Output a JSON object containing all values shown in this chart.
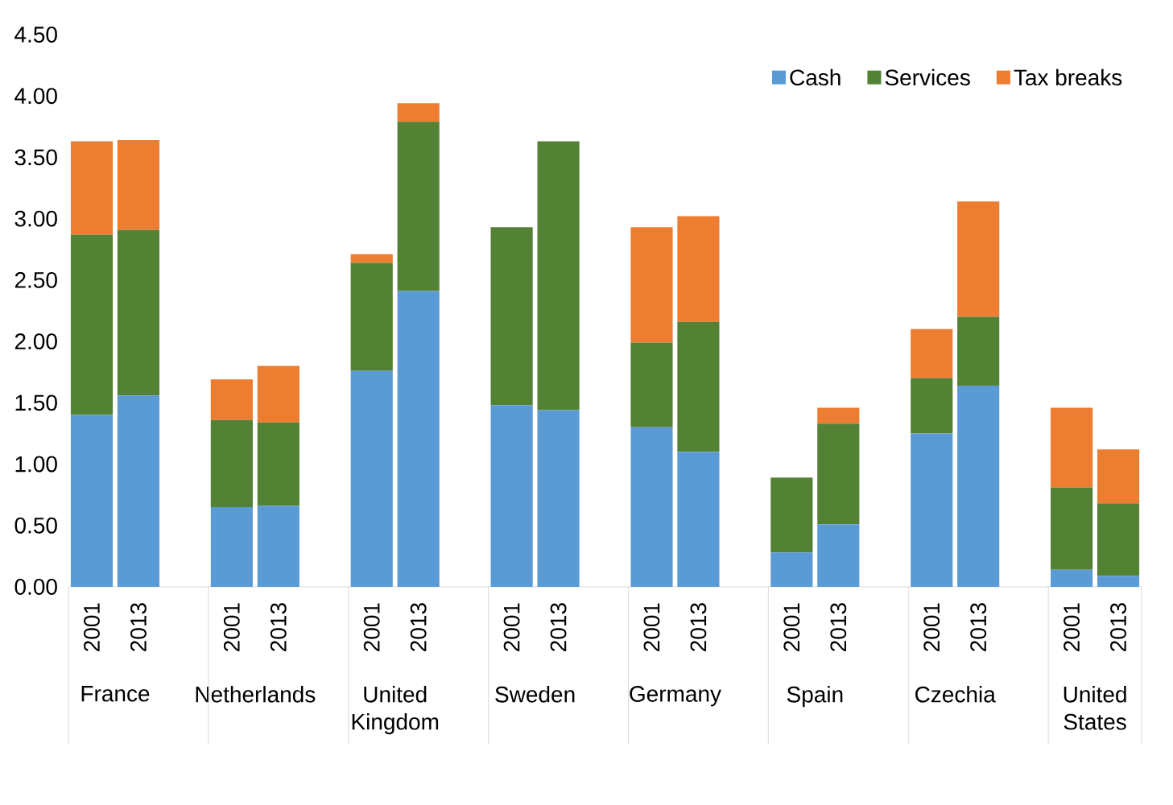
{
  "chart_data": {
    "type": "bar",
    "stacked": true,
    "categories": [
      "2001",
      "2013",
      "2001",
      "2013",
      "2001",
      "2013",
      "2001",
      "2013",
      "2001",
      "2013",
      "2001",
      "2013",
      "2001",
      "2013",
      "2001",
      "2013"
    ],
    "series": [
      {
        "name": "Cash",
        "color": "#5b9bd5",
        "values": [
          1.4,
          1.56,
          0.65,
          0.66,
          1.76,
          2.41,
          1.48,
          1.44,
          1.3,
          1.1,
          0.28,
          0.51,
          1.25,
          1.64,
          0.14,
          0.09
        ]
      },
      {
        "name": "Services",
        "color": "#548235",
        "values": [
          1.47,
          1.35,
          0.71,
          0.68,
          0.88,
          1.38,
          1.45,
          2.19,
          0.69,
          1.06,
          0.61,
          0.82,
          0.45,
          0.56,
          0.67,
          0.59
        ]
      },
      {
        "name": "Tax breaks",
        "color": "#ed7d31",
        "values": [
          0.76,
          0.73,
          0.33,
          0.46,
          0.07,
          0.15,
          0,
          0,
          0.94,
          0.86,
          0,
          0.13,
          0.4,
          0.94,
          0.65,
          0.44
        ]
      }
    ],
    "annotations": [
      "France",
      "Netherlands",
      "United Kingdom",
      "Sweden",
      "Germany",
      "Spain",
      "Czechia",
      "United States"
    ],
    "ylim": [
      0,
      4.5
    ],
    "yticks": [
      {
        "value": 0,
        "label": "0.00"
      },
      {
        "value": 0.5,
        "label": "0.50"
      },
      {
        "value": 1,
        "label": "1.00"
      },
      {
        "value": 1.5,
        "label": "1.50"
      },
      {
        "value": 2,
        "label": "2.00"
      },
      {
        "value": 2.5,
        "label": "2.50"
      },
      {
        "value": 3,
        "label": "3.00"
      },
      {
        "value": 3.5,
        "label": "3.50"
      },
      {
        "value": 4,
        "label": "4.00"
      },
      {
        "value": 4.5,
        "label": "4.50"
      }
    ],
    "grid": false,
    "legend": "top right"
  }
}
